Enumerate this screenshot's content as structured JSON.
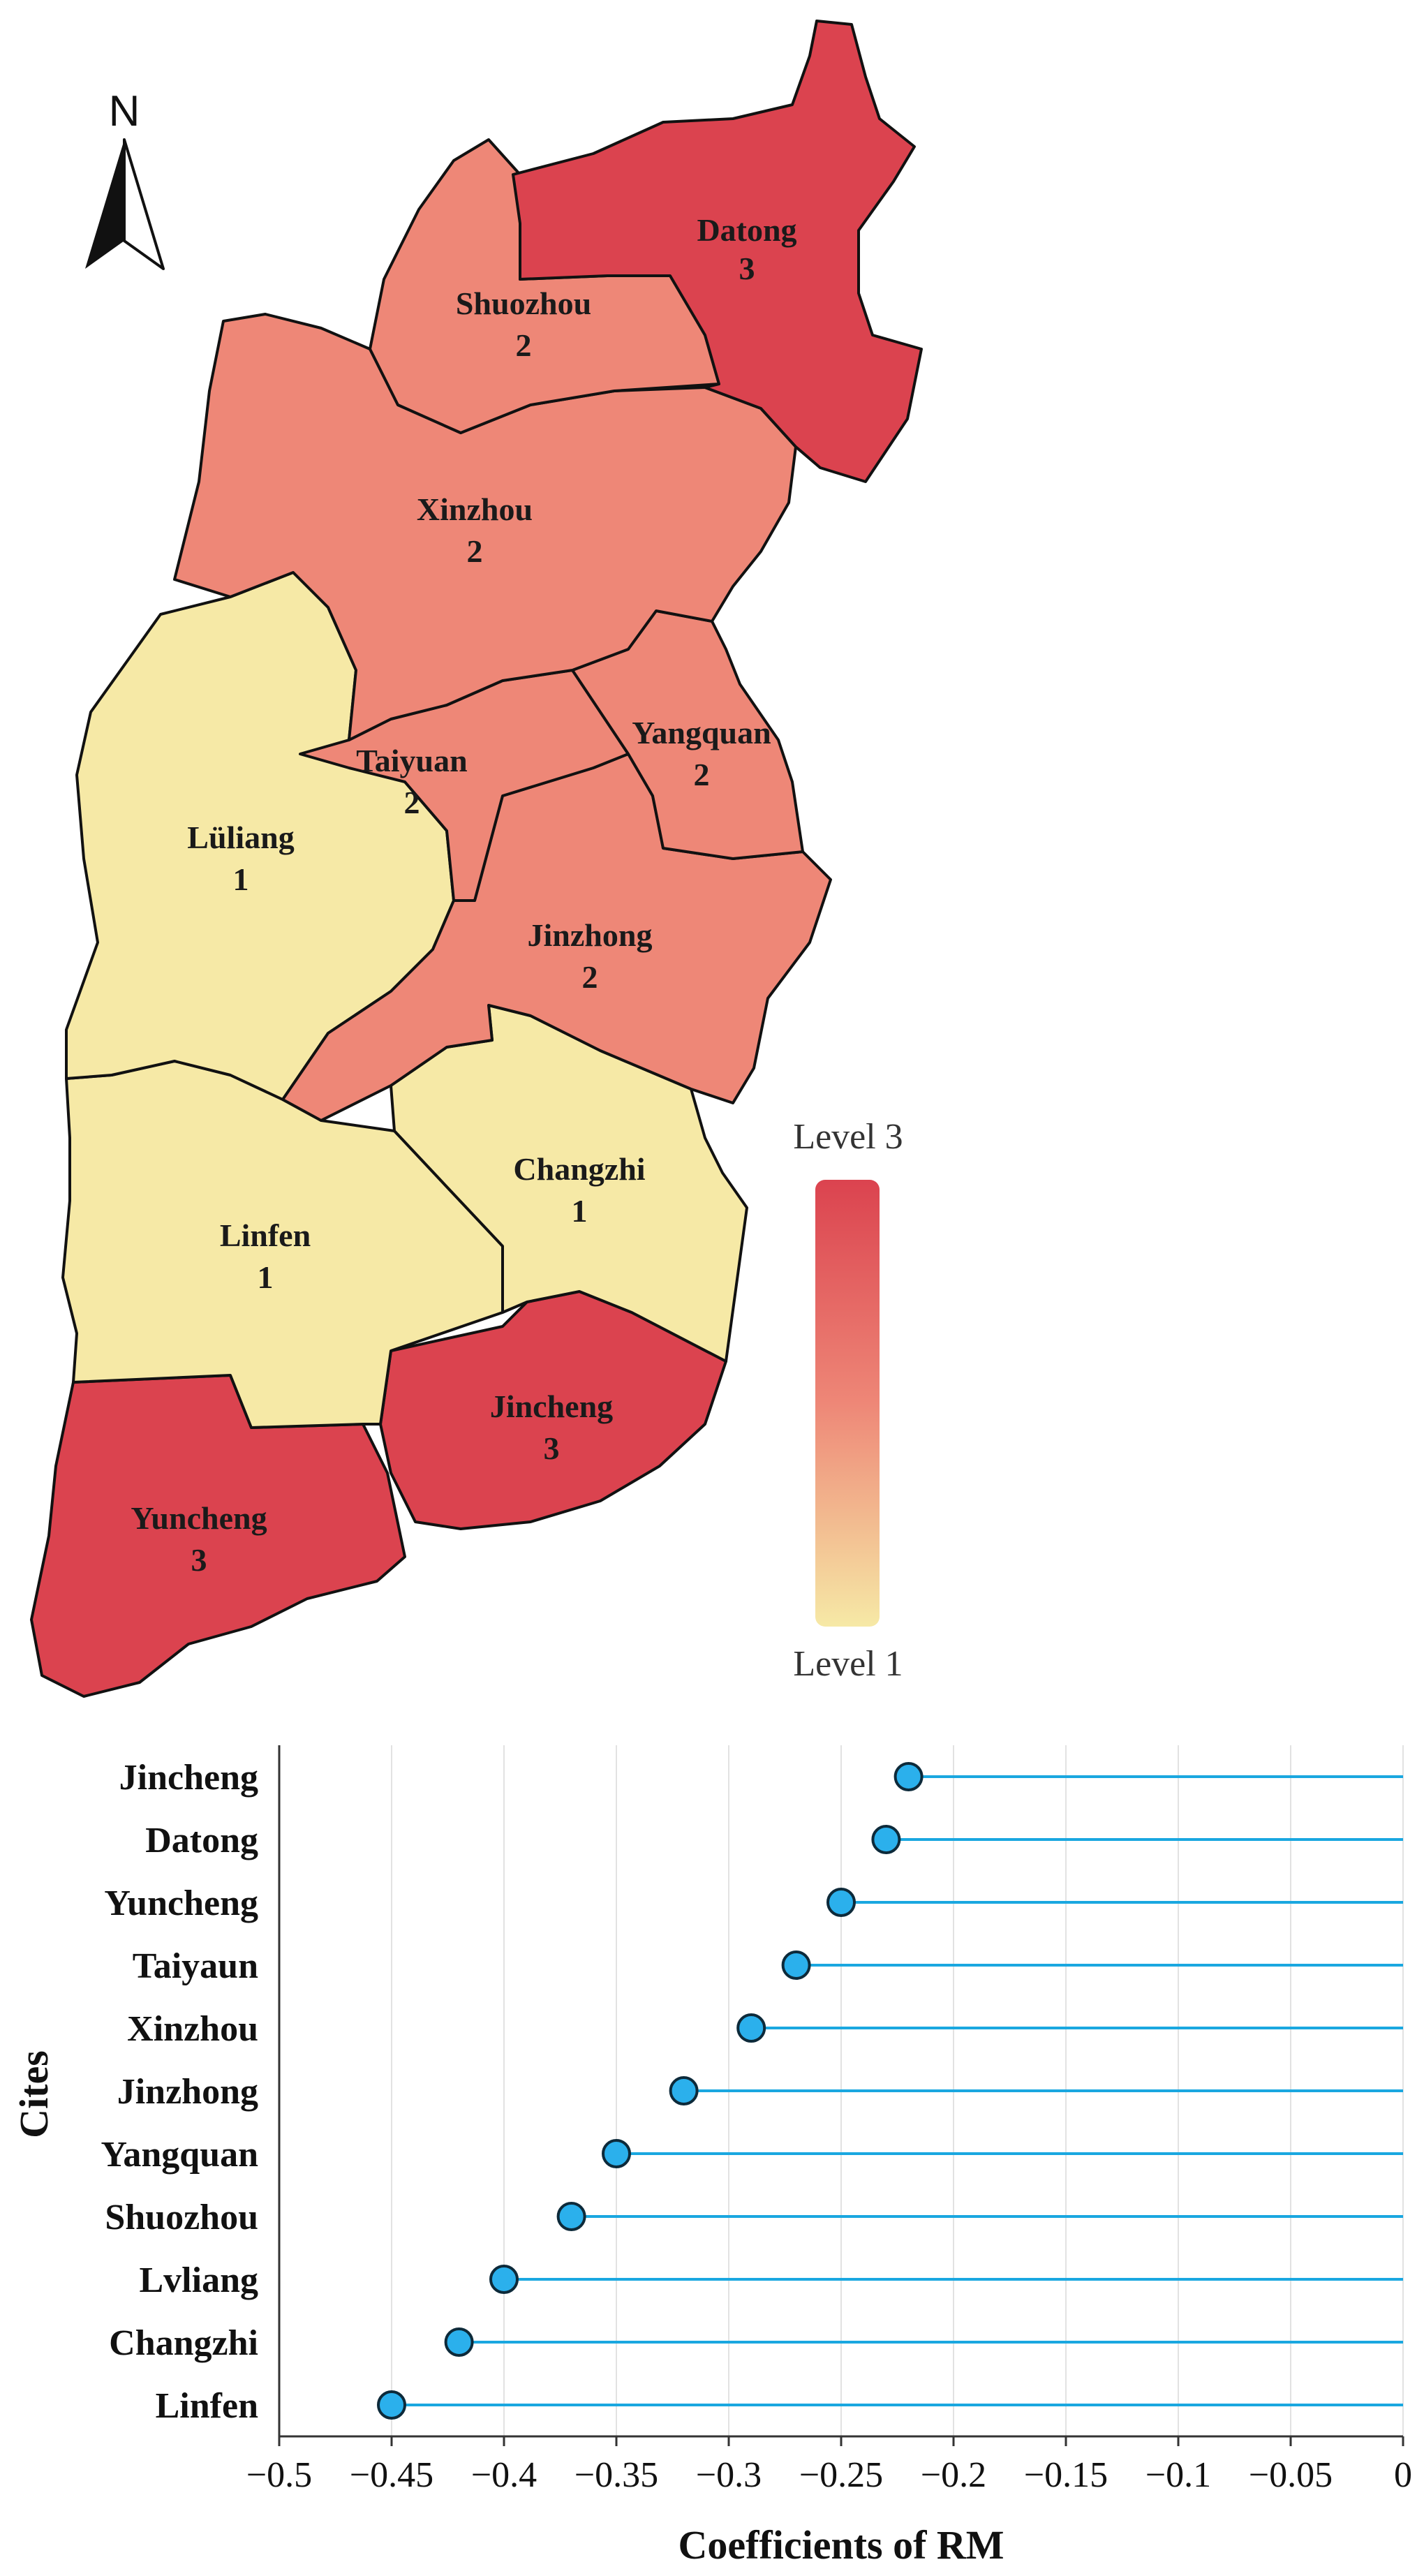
{
  "map": {
    "north_label": "N",
    "legend": {
      "top_label": "Level 3",
      "bottom_label": "Level 1"
    },
    "level_colors": {
      "1": "#f6e9a6",
      "2": "#ee8777",
      "3": "#db434f"
    },
    "regions": [
      {
        "name": "Datong",
        "level": "3"
      },
      {
        "name": "Shuozhou",
        "level": "2"
      },
      {
        "name": "Xinzhou",
        "level": "2"
      },
      {
        "name": "Taiyuan",
        "level": "2"
      },
      {
        "name": "Yangquan",
        "level": "2"
      },
      {
        "name": "Lüliang",
        "level": "1"
      },
      {
        "name": "Jinzhong",
        "level": "2"
      },
      {
        "name": "Changzhi",
        "level": "1"
      },
      {
        "name": "Linfen",
        "level": "1"
      },
      {
        "name": "Jincheng",
        "level": "3"
      },
      {
        "name": "Yuncheng",
        "level": "3"
      }
    ]
  },
  "chart_data": {
    "type": "lollipop",
    "categories": [
      "Jincheng",
      "Datong",
      "Yuncheng",
      "Taiyaun",
      "Xinzhou",
      "Jinzhong",
      "Yangquan",
      "Shuozhou",
      "Lvliang",
      "Changzhi",
      "Linfen"
    ],
    "values": [
      -0.22,
      -0.23,
      -0.25,
      -0.27,
      -0.29,
      -0.32,
      -0.35,
      -0.37,
      -0.4,
      -0.42,
      -0.45
    ],
    "xlabel": "Coefficients of RM",
    "ylabel": "Cites",
    "xlim": [
      -0.5,
      0
    ],
    "xticks": [
      -0.5,
      -0.45,
      -0.4,
      -0.35,
      -0.3,
      -0.25,
      -0.2,
      -0.15,
      -0.1,
      -0.05,
      0
    ],
    "xtick_labels": [
      "−0.5",
      "−0.45",
      "−0.4",
      "−0.35",
      "−0.3",
      "−0.25",
      "−0.2",
      "−0.15",
      "−0.1",
      "−0.05",
      "0"
    ],
    "grid": "vertical",
    "colors": {
      "stem": "#1aa7e0",
      "marker": "#2bb0ec",
      "marker_edge": "#0d2a3a"
    }
  }
}
